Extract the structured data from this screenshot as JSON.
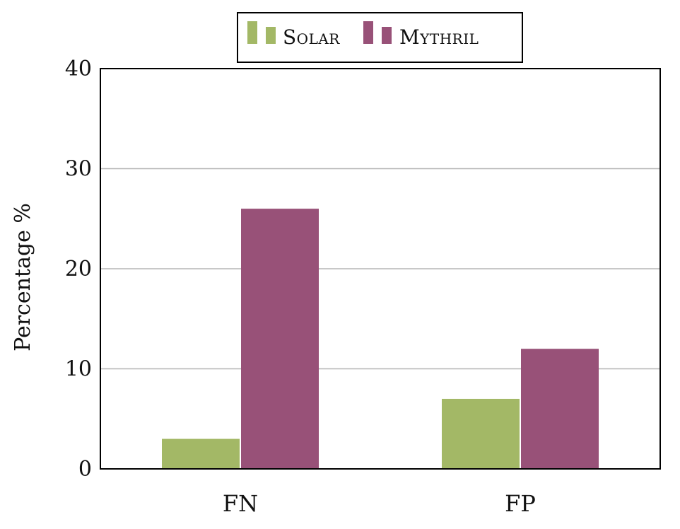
{
  "colors": {
    "solar": "#a3b866",
    "mythril": "#985178",
    "gridline": "#b5b5b5",
    "axis": "#000000"
  },
  "chart_data": {
    "type": "bar",
    "categories": [
      "FN",
      "FP"
    ],
    "series": [
      {
        "name": "Solar",
        "values": [
          3,
          7
        ]
      },
      {
        "name": "Mythril",
        "values": [
          26,
          12
        ]
      }
    ],
    "title": "",
    "xlabel": "",
    "ylabel": "Percentage %",
    "ylim": [
      0,
      40
    ],
    "yticks": [
      0,
      10,
      20,
      30,
      40
    ],
    "grid": "horizontal",
    "legend_position": "top-center"
  }
}
